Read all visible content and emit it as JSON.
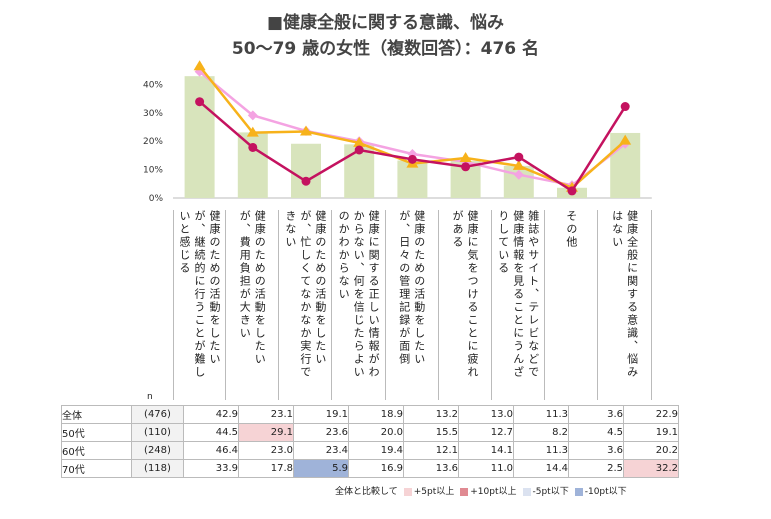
{
  "title_line1": "■健康全般に関する意識、悩み",
  "title_line2": "50～79 歳の女性（複数回答）：476 名",
  "n_label": "n",
  "chart_data": {
    "type": "bar",
    "yticks": [
      "0%",
      "10%",
      "20%",
      "30%",
      "40%"
    ],
    "ylim": [
      0,
      45
    ],
    "categories": [
      "健康のための活動をしたいが、継続的に行うことが難しいと感じる",
      "健康のための活動をしたいが、費用負担が大きい",
      "健康のための活動をしたいが、忙しくてなかなか実行できない",
      "健康に関する正しい情報がわからない、何を信じたらよいのかわからない",
      "健康のための活動をしたいが、日々の管理記録が面倒",
      "健康に気をつけることに疲れがある",
      "雑誌やサイト、テレビなどで健康情報を見ることにうんざりしている",
      "その他",
      "健康全般に関する意識、悩みはない"
    ],
    "bar_series": {
      "name": "全体",
      "values": [
        42.9,
        23.1,
        19.1,
        18.9,
        13.2,
        13.0,
        11.3,
        3.6,
        22.9
      ],
      "color": "#d8e4bc"
    },
    "line_series": [
      {
        "name": "50代",
        "values": [
          44.5,
          29.1,
          23.6,
          20.0,
          15.5,
          12.7,
          8.2,
          4.5,
          19.1
        ],
        "color": "#f4a3e2",
        "marker": "diamond"
      },
      {
        "name": "60代",
        "values": [
          46.4,
          23.0,
          23.4,
          19.4,
          12.1,
          14.1,
          11.3,
          3.6,
          20.2
        ],
        "color": "#f7b21a",
        "marker": "triangle"
      },
      {
        "name": "70代",
        "values": [
          33.9,
          17.8,
          5.9,
          16.9,
          13.6,
          11.0,
          14.4,
          2.5,
          32.2
        ],
        "color": "#c4125f",
        "marker": "circle"
      }
    ]
  },
  "table": {
    "rows": [
      {
        "group": "全体",
        "n": "(476)",
        "values": [
          "42.9",
          "23.1",
          "19.1",
          "18.9",
          "13.2",
          "13.0",
          "11.3",
          "3.6",
          "22.9"
        ],
        "hl": [
          "",
          "",
          "",
          "",
          "",
          "",
          "",
          "",
          ""
        ]
      },
      {
        "group": "50代",
        "n": "(110)",
        "values": [
          "44.5",
          "29.1",
          "23.6",
          "20.0",
          "15.5",
          "12.7",
          "8.2",
          "4.5",
          "19.1"
        ],
        "hl": [
          "",
          "hi5",
          "",
          "",
          "",
          "",
          "",
          "",
          ""
        ]
      },
      {
        "group": "60代",
        "n": "(248)",
        "values": [
          "46.4",
          "23.0",
          "23.4",
          "19.4",
          "12.1",
          "14.1",
          "11.3",
          "3.6",
          "20.2"
        ],
        "hl": [
          "",
          "",
          "",
          "",
          "",
          "",
          "",
          "",
          ""
        ]
      },
      {
        "group": "70代",
        "n": "(118)",
        "values": [
          "33.9",
          "17.8",
          "5.9",
          "16.9",
          "13.6",
          "11.0",
          "14.4",
          "2.5",
          "32.2"
        ],
        "hl": [
          "",
          "",
          "lo10",
          "",
          "",
          "",
          "",
          "",
          "hi5"
        ]
      }
    ]
  },
  "legend": {
    "prefix": "全体と比較して",
    "items": [
      {
        "label": "+5pt以上",
        "color": "#f6d3d5"
      },
      {
        "label": "+10pt以上",
        "color": "#e08a92"
      },
      {
        "label": "-5pt以下",
        "color": "#dbe2f0"
      },
      {
        "label": "-10pt以下",
        "color": "#9fb3d9"
      }
    ]
  }
}
